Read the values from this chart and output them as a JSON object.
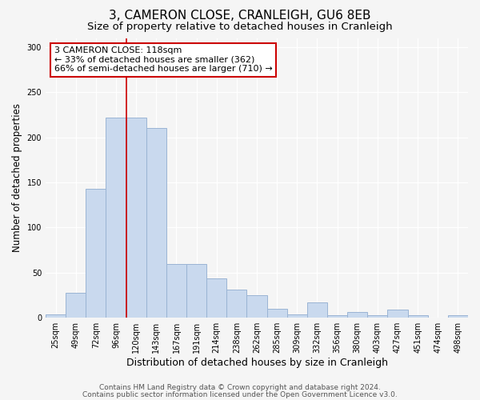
{
  "title": "3, CAMERON CLOSE, CRANLEIGH, GU6 8EB",
  "subtitle": "Size of property relative to detached houses in Cranleigh",
  "xlabel": "Distribution of detached houses by size in Cranleigh",
  "ylabel": "Number of detached properties",
  "bar_labels": [
    "25sqm",
    "49sqm",
    "72sqm",
    "96sqm",
    "120sqm",
    "143sqm",
    "167sqm",
    "191sqm",
    "214sqm",
    "238sqm",
    "262sqm",
    "285sqm",
    "309sqm",
    "332sqm",
    "356sqm",
    "380sqm",
    "403sqm",
    "427sqm",
    "451sqm",
    "474sqm",
    "498sqm"
  ],
  "bar_values": [
    4,
    28,
    143,
    222,
    222,
    210,
    60,
    60,
    44,
    31,
    25,
    10,
    4,
    17,
    3,
    6,
    3,
    9,
    3,
    0,
    3
  ],
  "bar_color": "#c9d9ee",
  "bar_edge_color": "#9ab4d4",
  "vline_x": 3.5,
  "vline_color": "#cc0000",
  "annotation_text": "3 CAMERON CLOSE: 118sqm\n← 33% of detached houses are smaller (362)\n66% of semi-detached houses are larger (710) →",
  "annotation_box_edge": "#cc0000",
  "ylim": [
    0,
    310
  ],
  "yticks": [
    0,
    50,
    100,
    150,
    200,
    250,
    300
  ],
  "footer1": "Contains HM Land Registry data © Crown copyright and database right 2024.",
  "footer2": "Contains public sector information licensed under the Open Government Licence v3.0.",
  "bg_color": "#f5f5f5",
  "plot_bg_color": "#f5f5f5",
  "grid_color": "#ffffff",
  "title_fontsize": 11,
  "subtitle_fontsize": 9.5,
  "xlabel_fontsize": 9,
  "ylabel_fontsize": 8.5,
  "tick_fontsize": 7,
  "annotation_fontsize": 8,
  "footer_fontsize": 6.5
}
